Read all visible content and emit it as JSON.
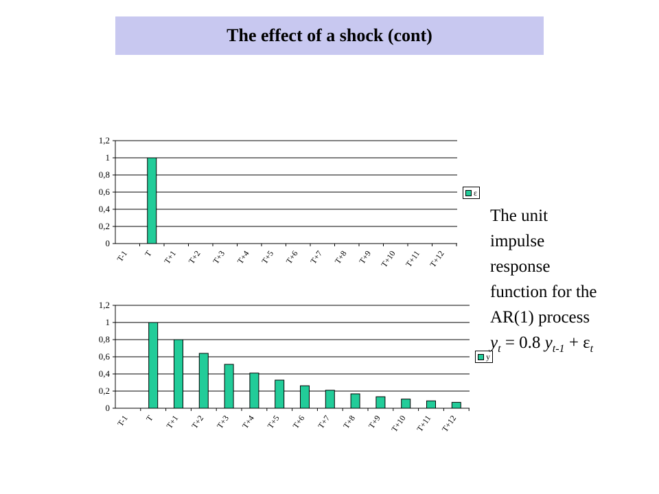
{
  "title": "The effect of a shock (cont)",
  "chart_data": [
    {
      "type": "bar",
      "categories": [
        "T-1",
        "T",
        "T+1",
        "T+2",
        "T+3",
        "T+4",
        "T+5",
        "T+6",
        "T+7",
        "T+8",
        "T+9",
        "T+10",
        "T+11",
        "T+12"
      ],
      "series": [
        {
          "name": "ε",
          "values": [
            0,
            1,
            0,
            0,
            0,
            0,
            0,
            0,
            0,
            0,
            0,
            0,
            0,
            0
          ]
        }
      ],
      "yticks": [
        "0",
        "0,2",
        "0,4",
        "0,6",
        "0,8",
        "1",
        "1,2"
      ],
      "ylim": [
        0,
        1.2
      ],
      "grid": true,
      "legend": "right",
      "bar_color": "#22cc99"
    },
    {
      "type": "bar",
      "categories": [
        "T-1",
        "T",
        "T+1",
        "T+2",
        "T+3",
        "T+4",
        "T+5",
        "T+6",
        "T+7",
        "T+8",
        "T+9",
        "T+10",
        "T+11",
        "T+12"
      ],
      "series": [
        {
          "name": "y",
          "values": [
            0,
            1,
            0.8,
            0.64,
            0.512,
            0.41,
            0.328,
            0.262,
            0.21,
            0.168,
            0.134,
            0.107,
            0.086,
            0.069
          ]
        }
      ],
      "yticks": [
        "0",
        "0,2",
        "0,4",
        "0,6",
        "0,8",
        "1",
        "1,2"
      ],
      "ylim": [
        0,
        1.2
      ],
      "grid": true,
      "legend": "right",
      "bar_color": "#22cc99"
    }
  ],
  "caption": {
    "line1": "The unit",
    "line2": "impulse",
    "line3": "response",
    "line4": "function for the",
    "line5": "AR(1) process",
    "eq_y": "y",
    "eq_t": "t",
    "eq_mid": " = 0.8 ",
    "eq_y2": "y",
    "eq_t1": "t-1",
    "eq_plus": " + ",
    "eq_eps": "ε",
    "eq_t2": "t"
  }
}
